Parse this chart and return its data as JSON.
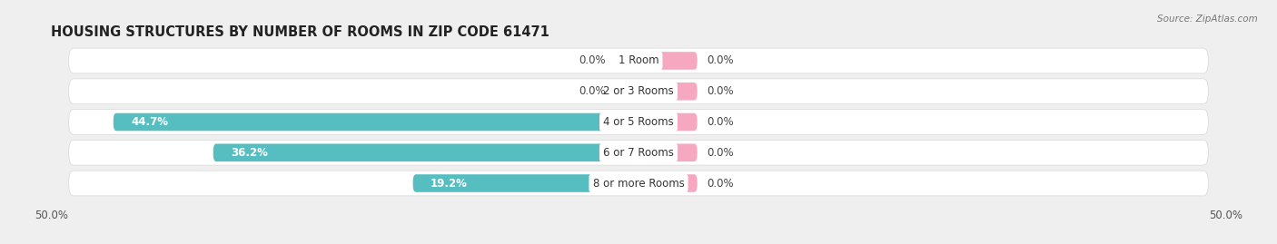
{
  "title": "HOUSING STRUCTURES BY NUMBER OF ROOMS IN ZIP CODE 61471",
  "source": "Source: ZipAtlas.com",
  "categories": [
    "1 Room",
    "2 or 3 Rooms",
    "4 or 5 Rooms",
    "6 or 7 Rooms",
    "8 or more Rooms"
  ],
  "owner_values": [
    0.0,
    0.0,
    44.7,
    36.2,
    19.2
  ],
  "renter_values": [
    0.0,
    0.0,
    0.0,
    0.0,
    0.0
  ],
  "owner_color": "#56bec0",
  "renter_color": "#f5a8bf",
  "background_color": "#efefef",
  "row_bg_color": "#ffffff",
  "row_border_color": "#d8d8d8",
  "axis_limit": 50.0,
  "min_stub": 5.0,
  "bar_height": 0.58,
  "title_fontsize": 10.5,
  "label_fontsize": 8.5,
  "category_fontsize": 8.5,
  "legend_fontsize": 8.5,
  "value_label_color": "#444444",
  "owner_label_color": "#ffffff",
  "category_label_color": "#333333"
}
